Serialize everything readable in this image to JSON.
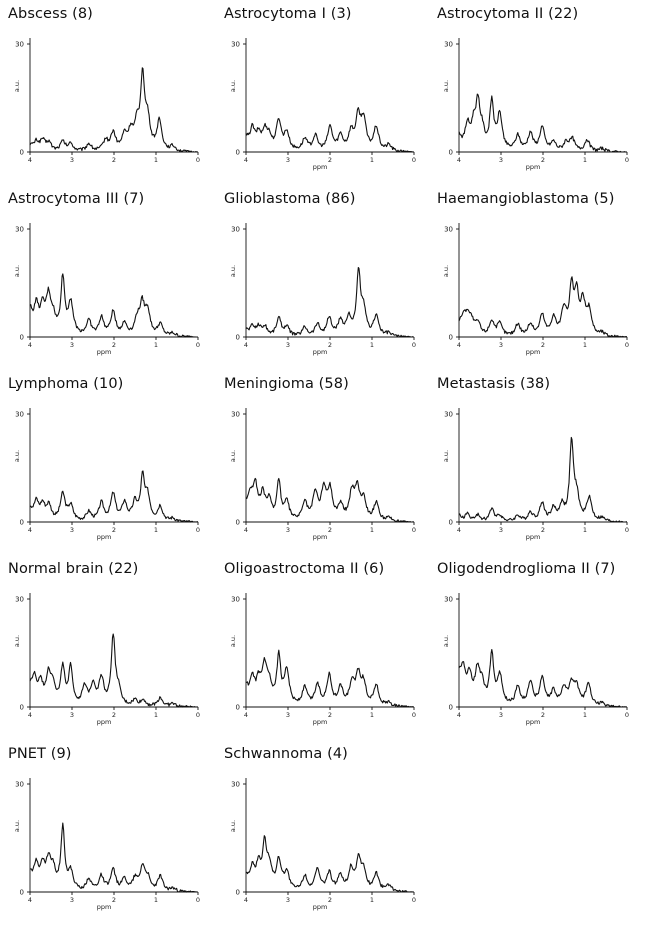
{
  "chart_data": [
    {
      "type": "line",
      "title": "Abscess (8)",
      "xlabel": "",
      "ylabel": "a.u.",
      "xlim": [
        4,
        0
      ],
      "ylim": [
        0,
        30
      ],
      "x_ticks": [
        "4",
        "3",
        "2",
        "1",
        "0"
      ],
      "y_ticks": [
        "0",
        "30"
      ],
      "grid": false,
      "peaks": [
        [
          4.0,
          2
        ],
        [
          3.85,
          3
        ],
        [
          3.7,
          3.5
        ],
        [
          3.55,
          2.8
        ],
        [
          3.22,
          3.2
        ],
        [
          3.03,
          2.5
        ],
        [
          2.6,
          2.5
        ],
        [
          2.2,
          3.5
        ],
        [
          2.02,
          6
        ],
        [
          1.75,
          5
        ],
        [
          1.6,
          6
        ],
        [
          1.45,
          8
        ],
        [
          1.32,
          24
        ],
        [
          1.2,
          10
        ],
        [
          0.92,
          10
        ],
        [
          0.6,
          1.5
        ],
        [
          0.2,
          0.3
        ]
      ]
    },
    {
      "type": "line",
      "title": "Astrocytoma I (3)",
      "xlabel": "ppm",
      "ylabel": "a.u.",
      "xlim": [
        4,
        0
      ],
      "ylim": [
        0,
        30
      ],
      "x_ticks": [
        "4",
        "3",
        "2",
        "1",
        "0"
      ],
      "y_ticks": [
        "0",
        "30"
      ],
      "grid": false,
      "peaks": [
        [
          4.0,
          4
        ],
        [
          3.85,
          7
        ],
        [
          3.7,
          5
        ],
        [
          3.55,
          6
        ],
        [
          3.45,
          4
        ],
        [
          3.22,
          10
        ],
        [
          3.03,
          6
        ],
        [
          2.6,
          4
        ],
        [
          2.35,
          5
        ],
        [
          2.0,
          8
        ],
        [
          1.75,
          5
        ],
        [
          1.5,
          6
        ],
        [
          1.33,
          11
        ],
        [
          1.2,
          10
        ],
        [
          0.9,
          8
        ],
        [
          0.6,
          2
        ],
        [
          0.2,
          0.5
        ]
      ]
    },
    {
      "type": "line",
      "title": "Astrocytoma II (22)",
      "xlabel": "ppm",
      "ylabel": "a.u.",
      "xlim": [
        4,
        0
      ],
      "ylim": [
        0,
        30
      ],
      "x_ticks": [
        "4",
        "3",
        "2",
        "1",
        "0"
      ],
      "y_ticks": [
        "0",
        "30"
      ],
      "grid": false,
      "peaks": [
        [
          4.0,
          5
        ],
        [
          3.8,
          8
        ],
        [
          3.65,
          8
        ],
        [
          3.55,
          14
        ],
        [
          3.45,
          6
        ],
        [
          3.22,
          16
        ],
        [
          3.03,
          12
        ],
        [
          2.6,
          5
        ],
        [
          2.3,
          6
        ],
        [
          2.02,
          8
        ],
        [
          1.75,
          3
        ],
        [
          1.45,
          3
        ],
        [
          1.3,
          4
        ],
        [
          0.95,
          4
        ],
        [
          0.6,
          1
        ],
        [
          0.2,
          0.3
        ]
      ]
    },
    {
      "type": "line",
      "title": "Astrocytoma III (7)",
      "xlabel": "ppm",
      "ylabel": "a.u.",
      "xlim": [
        4,
        0
      ],
      "ylim": [
        0,
        30
      ],
      "x_ticks": [
        "4",
        "3",
        "2",
        "1",
        "0"
      ],
      "y_ticks": [
        "0",
        "30"
      ],
      "grid": false,
      "peaks": [
        [
          4.0,
          8
        ],
        [
          3.85,
          9
        ],
        [
          3.7,
          8
        ],
        [
          3.56,
          12
        ],
        [
          3.45,
          5
        ],
        [
          3.22,
          19
        ],
        [
          3.03,
          11
        ],
        [
          2.6,
          5
        ],
        [
          2.3,
          6
        ],
        [
          2.02,
          8
        ],
        [
          1.75,
          4
        ],
        [
          1.45,
          5
        ],
        [
          1.33,
          10
        ],
        [
          1.2,
          8
        ],
        [
          0.9,
          4
        ],
        [
          0.6,
          1
        ],
        [
          0.2,
          0.3
        ]
      ]
    },
    {
      "type": "line",
      "title": "Glioblastoma (86)",
      "xlabel": "ppm",
      "ylabel": "a.u.",
      "xlim": [
        4,
        0
      ],
      "ylim": [
        0,
        30
      ],
      "x_ticks": [
        "4",
        "3",
        "2",
        "1",
        "0"
      ],
      "y_ticks": [
        "0",
        "30"
      ],
      "grid": false,
      "peaks": [
        [
          4.0,
          2
        ],
        [
          3.85,
          3
        ],
        [
          3.7,
          3
        ],
        [
          3.55,
          3
        ],
        [
          3.22,
          6
        ],
        [
          3.03,
          3
        ],
        [
          2.6,
          3
        ],
        [
          2.3,
          4
        ],
        [
          2.02,
          6
        ],
        [
          1.75,
          5
        ],
        [
          1.55,
          6
        ],
        [
          1.32,
          21
        ],
        [
          1.2,
          8
        ],
        [
          0.9,
          7
        ],
        [
          0.6,
          1
        ],
        [
          0.2,
          0.3
        ]
      ]
    },
    {
      "type": "line",
      "title": "Haemangioblastoma (5)",
      "xlabel": "ppm",
      "ylabel": "a.u.",
      "xlim": [
        4,
        0
      ],
      "ylim": [
        0,
        30
      ],
      "x_ticks": [
        "4",
        "3",
        "2",
        "1",
        "0"
      ],
      "y_ticks": [
        "0",
        "30"
      ],
      "grid": false,
      "peaks": [
        [
          4.0,
          3
        ],
        [
          3.9,
          5
        ],
        [
          3.8,
          6
        ],
        [
          3.7,
          4
        ],
        [
          3.55,
          4
        ],
        [
          3.22,
          5
        ],
        [
          3.03,
          4
        ],
        [
          2.6,
          4
        ],
        [
          2.3,
          4
        ],
        [
          2.02,
          7
        ],
        [
          1.75,
          6
        ],
        [
          1.5,
          9
        ],
        [
          1.32,
          16
        ],
        [
          1.2,
          13
        ],
        [
          1.05,
          11
        ],
        [
          0.9,
          8
        ],
        [
          0.6,
          1
        ],
        [
          0.2,
          0.3
        ]
      ]
    },
    {
      "type": "line",
      "title": "Lymphoma (10)",
      "xlabel": "ppm",
      "ylabel": "a.u.",
      "xlim": [
        4,
        0
      ],
      "ylim": [
        0,
        30
      ],
      "x_ticks": [
        "4",
        "3",
        "2",
        "1",
        "0"
      ],
      "y_ticks": [
        "0",
        "30"
      ],
      "grid": false,
      "peaks": [
        [
          4.0,
          4
        ],
        [
          3.85,
          6
        ],
        [
          3.7,
          5
        ],
        [
          3.55,
          5
        ],
        [
          3.22,
          9
        ],
        [
          3.03,
          5
        ],
        [
          2.6,
          3
        ],
        [
          2.3,
          6
        ],
        [
          2.02,
          9
        ],
        [
          1.75,
          6
        ],
        [
          1.5,
          6
        ],
        [
          1.32,
          14
        ],
        [
          1.2,
          8
        ],
        [
          0.9,
          5
        ],
        [
          0.6,
          1
        ],
        [
          0.2,
          0.3
        ]
      ]
    },
    {
      "type": "line",
      "title": "Meningioma (58)",
      "xlabel": "ppm",
      "ylabel": "a.u.",
      "xlim": [
        4,
        0
      ],
      "ylim": [
        0,
        30
      ],
      "x_ticks": [
        "4",
        "3",
        "2",
        "1",
        "0"
      ],
      "y_ticks": [
        "0",
        "30"
      ],
      "grid": false,
      "peaks": [
        [
          4.0,
          4
        ],
        [
          3.9,
          7
        ],
        [
          3.78,
          11
        ],
        [
          3.6,
          8
        ],
        [
          3.45,
          6
        ],
        [
          3.22,
          13
        ],
        [
          3.03,
          6
        ],
        [
          2.6,
          6
        ],
        [
          2.35,
          9
        ],
        [
          2.15,
          10
        ],
        [
          2.0,
          10
        ],
        [
          1.75,
          5
        ],
        [
          1.48,
          9
        ],
        [
          1.35,
          10
        ],
        [
          1.2,
          7
        ],
        [
          0.9,
          6
        ],
        [
          0.6,
          1
        ],
        [
          0.2,
          0.3
        ]
      ]
    },
    {
      "type": "line",
      "title": "Metastasis (38)",
      "xlabel": "ppm",
      "ylabel": "a.u.",
      "xlim": [
        4,
        0
      ],
      "ylim": [
        0,
        30
      ],
      "x_ticks": [
        "4",
        "3",
        "2",
        "1",
        "0"
      ],
      "y_ticks": [
        "0",
        "30"
      ],
      "grid": false,
      "peaks": [
        [
          4.0,
          2
        ],
        [
          3.8,
          2.5
        ],
        [
          3.55,
          2
        ],
        [
          3.22,
          4
        ],
        [
          3.03,
          2
        ],
        [
          2.6,
          2
        ],
        [
          2.3,
          3
        ],
        [
          2.02,
          6
        ],
        [
          1.75,
          4
        ],
        [
          1.55,
          5
        ],
        [
          1.32,
          26
        ],
        [
          1.2,
          8
        ],
        [
          0.9,
          8
        ],
        [
          0.6,
          1
        ],
        [
          0.2,
          0.3
        ]
      ]
    },
    {
      "type": "line",
      "title": "Normal brain (22)",
      "xlabel": "ppm",
      "ylabel": "a.u.",
      "xlim": [
        4,
        0
      ],
      "ylim": [
        0,
        30
      ],
      "x_ticks": [
        "4",
        "3",
        "2",
        "1",
        "0"
      ],
      "y_ticks": [
        "0",
        "30"
      ],
      "grid": false,
      "peaks": [
        [
          4.0,
          5
        ],
        [
          3.9,
          8
        ],
        [
          3.75,
          7
        ],
        [
          3.56,
          10
        ],
        [
          3.45,
          6
        ],
        [
          3.22,
          13
        ],
        [
          3.03,
          13
        ],
        [
          2.7,
          6
        ],
        [
          2.5,
          7
        ],
        [
          2.3,
          9
        ],
        [
          2.02,
          23
        ],
        [
          1.9,
          5
        ],
        [
          1.5,
          2
        ],
        [
          1.3,
          2
        ],
        [
          0.9,
          3
        ],
        [
          0.6,
          1
        ],
        [
          0.2,
          0.3
        ]
      ]
    },
    {
      "type": "line",
      "title": "Oligoastroctoma II  (6)",
      "xlabel": "ppm",
      "ylabel": "a.u.",
      "xlim": [
        4,
        0
      ],
      "ylim": [
        0,
        30
      ],
      "x_ticks": [
        "4",
        "3",
        "2",
        "1",
        "0"
      ],
      "y_ticks": [
        "0",
        "30"
      ],
      "grid": false,
      "peaks": [
        [
          4.0,
          6
        ],
        [
          3.85,
          8
        ],
        [
          3.7,
          7
        ],
        [
          3.56,
          12
        ],
        [
          3.45,
          6
        ],
        [
          3.22,
          16
        ],
        [
          3.03,
          12
        ],
        [
          2.6,
          6
        ],
        [
          2.3,
          7
        ],
        [
          2.02,
          10
        ],
        [
          1.75,
          6
        ],
        [
          1.48,
          7
        ],
        [
          1.33,
          10
        ],
        [
          1.2,
          7
        ],
        [
          0.9,
          7
        ],
        [
          0.6,
          1
        ],
        [
          0.2,
          0.3
        ]
      ]
    },
    {
      "type": "line",
      "title": "Oligodendroglioma II (7)",
      "xlabel": "ppm",
      "ylabel": "a.u.",
      "xlim": [
        4,
        0
      ],
      "ylim": [
        0,
        30
      ],
      "x_ticks": [
        "4",
        "3",
        "2",
        "1",
        "0"
      ],
      "y_ticks": [
        "0",
        "30"
      ],
      "grid": false,
      "peaks": [
        [
          4.0,
          9
        ],
        [
          3.9,
          10
        ],
        [
          3.75,
          9
        ],
        [
          3.56,
          11
        ],
        [
          3.45,
          6
        ],
        [
          3.22,
          17
        ],
        [
          3.03,
          10
        ],
        [
          2.6,
          6
        ],
        [
          2.3,
          8
        ],
        [
          2.02,
          9
        ],
        [
          1.75,
          5
        ],
        [
          1.5,
          6
        ],
        [
          1.32,
          7
        ],
        [
          1.2,
          6
        ],
        [
          0.92,
          8
        ],
        [
          0.6,
          1
        ],
        [
          0.2,
          0.3
        ]
      ]
    },
    {
      "type": "line",
      "title": "PNET (9)",
      "xlabel": "ppm",
      "ylabel": "a.u.",
      "xlim": [
        4,
        0
      ],
      "ylim": [
        0,
        30
      ],
      "x_ticks": [
        "4",
        "3",
        "2",
        "1",
        "0"
      ],
      "y_ticks": [
        "0",
        "30"
      ],
      "grid": false,
      "peaks": [
        [
          4.0,
          6
        ],
        [
          3.85,
          8
        ],
        [
          3.7,
          7
        ],
        [
          3.56,
          9
        ],
        [
          3.45,
          6
        ],
        [
          3.22,
          21
        ],
        [
          3.03,
          6
        ],
        [
          2.6,
          4
        ],
        [
          2.3,
          5
        ],
        [
          2.02,
          7
        ],
        [
          1.75,
          4
        ],
        [
          1.5,
          4
        ],
        [
          1.32,
          8
        ],
        [
          1.2,
          4
        ],
        [
          0.9,
          5
        ],
        [
          0.6,
          1
        ],
        [
          0.2,
          0.3
        ]
      ]
    },
    {
      "type": "line",
      "title": "Schwannoma (4)",
      "xlabel": "ppm",
      "ylabel": "a.u.",
      "xlim": [
        4,
        0
      ],
      "ylim": [
        0,
        30
      ],
      "x_ticks": [
        "4",
        "3",
        "2",
        "1",
        "0"
      ],
      "y_ticks": [
        "0",
        "30"
      ],
      "grid": false,
      "peaks": [
        [
          4.0,
          4
        ],
        [
          3.85,
          7
        ],
        [
          3.7,
          8
        ],
        [
          3.56,
          14
        ],
        [
          3.45,
          8
        ],
        [
          3.22,
          10
        ],
        [
          3.03,
          6
        ],
        [
          2.6,
          5
        ],
        [
          2.3,
          7
        ],
        [
          2.02,
          6
        ],
        [
          1.75,
          5
        ],
        [
          1.5,
          7
        ],
        [
          1.32,
          10
        ],
        [
          1.2,
          6
        ],
        [
          0.9,
          6
        ],
        [
          0.6,
          2
        ],
        [
          0.2,
          0.3
        ]
      ]
    }
  ]
}
